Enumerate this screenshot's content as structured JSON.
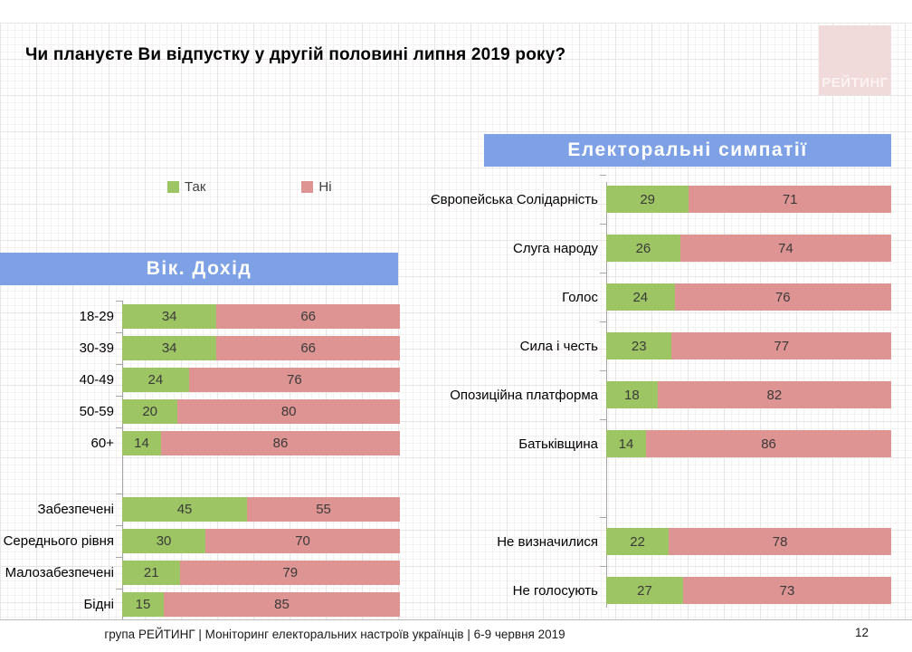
{
  "title": "Чи плануєте Ви відпустку у другій половині липня 2019 року?",
  "logo": {
    "text": "РЕЙТИНГ",
    "bg": "#F1DBDA",
    "fg": "#FBF3F2"
  },
  "legend": {
    "yes": "Так",
    "no": "Ні"
  },
  "colors": {
    "yes": "#9DC563",
    "no": "#DD9492",
    "header_bg": "#7EA1E6"
  },
  "footer": {
    "source": "група РЕЙТИНГ | Моніторинг електоральних настроїв українців | 6-9 червня 2019",
    "page": "12"
  },
  "chart_data": [
    {
      "type": "bar",
      "orientation": "horizontal",
      "stacked": true,
      "title": "Вік. Дохід",
      "categories": [
        "18-29",
        "30-39",
        "40-49",
        "50-59",
        "60+",
        "Забезпечені",
        "Середнього рівня",
        "Малозабезпечені",
        "Бідні"
      ],
      "series": [
        {
          "name": "Так",
          "values": [
            34,
            34,
            24,
            20,
            14,
            45,
            30,
            21,
            15
          ]
        },
        {
          "name": "Ні",
          "values": [
            66,
            66,
            76,
            80,
            86,
            55,
            70,
            79,
            85
          ]
        }
      ],
      "xlim": [
        0,
        100
      ],
      "gap_before": 5,
      "legend_position": "top",
      "data_labels": true
    },
    {
      "type": "bar",
      "orientation": "horizontal",
      "stacked": true,
      "title": "Електоральні симпатії",
      "categories": [
        "Європейська Солідарність",
        "Слуга народу",
        "Голос",
        "Сила і честь",
        "Опозиційна платформа",
        "Батьківщина",
        "Не визначилися",
        "Не голосують"
      ],
      "series": [
        {
          "name": "Так",
          "values": [
            29,
            26,
            24,
            23,
            18,
            14,
            22,
            27
          ]
        },
        {
          "name": "Ні",
          "values": [
            71,
            74,
            76,
            77,
            82,
            86,
            78,
            73
          ]
        }
      ],
      "xlim": [
        0,
        100
      ],
      "gap_before": 6,
      "legend_position": "top",
      "data_labels": true
    }
  ]
}
